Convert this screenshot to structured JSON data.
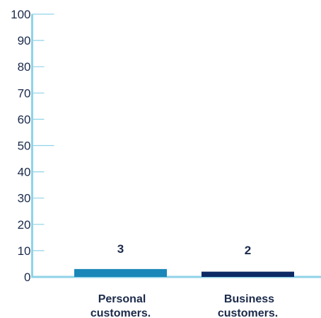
{
  "chart_data": {
    "type": "bar",
    "title": "",
    "xlabel": "",
    "ylabel": "",
    "categories": [
      [
        "Personal",
        "customers."
      ],
      [
        "Business",
        "customers."
      ]
    ],
    "values": [
      3,
      2
    ],
    "data_labels": [
      "3",
      "2"
    ],
    "ylim": [
      0,
      100
    ],
    "yticks": [
      0,
      10,
      20,
      30,
      40,
      50,
      60,
      70,
      80,
      90,
      100
    ],
    "ytick_labels": [
      "0",
      "10",
      "20",
      "30",
      "40",
      "50",
      "60",
      "70",
      "80",
      "90",
      "100"
    ],
    "grid": false,
    "legend": "none"
  },
  "colors": {
    "axis": "#8fd3e8",
    "bars": [
      "#1a87b8",
      "#0d2a66"
    ],
    "text": "#1b2a4a"
  }
}
